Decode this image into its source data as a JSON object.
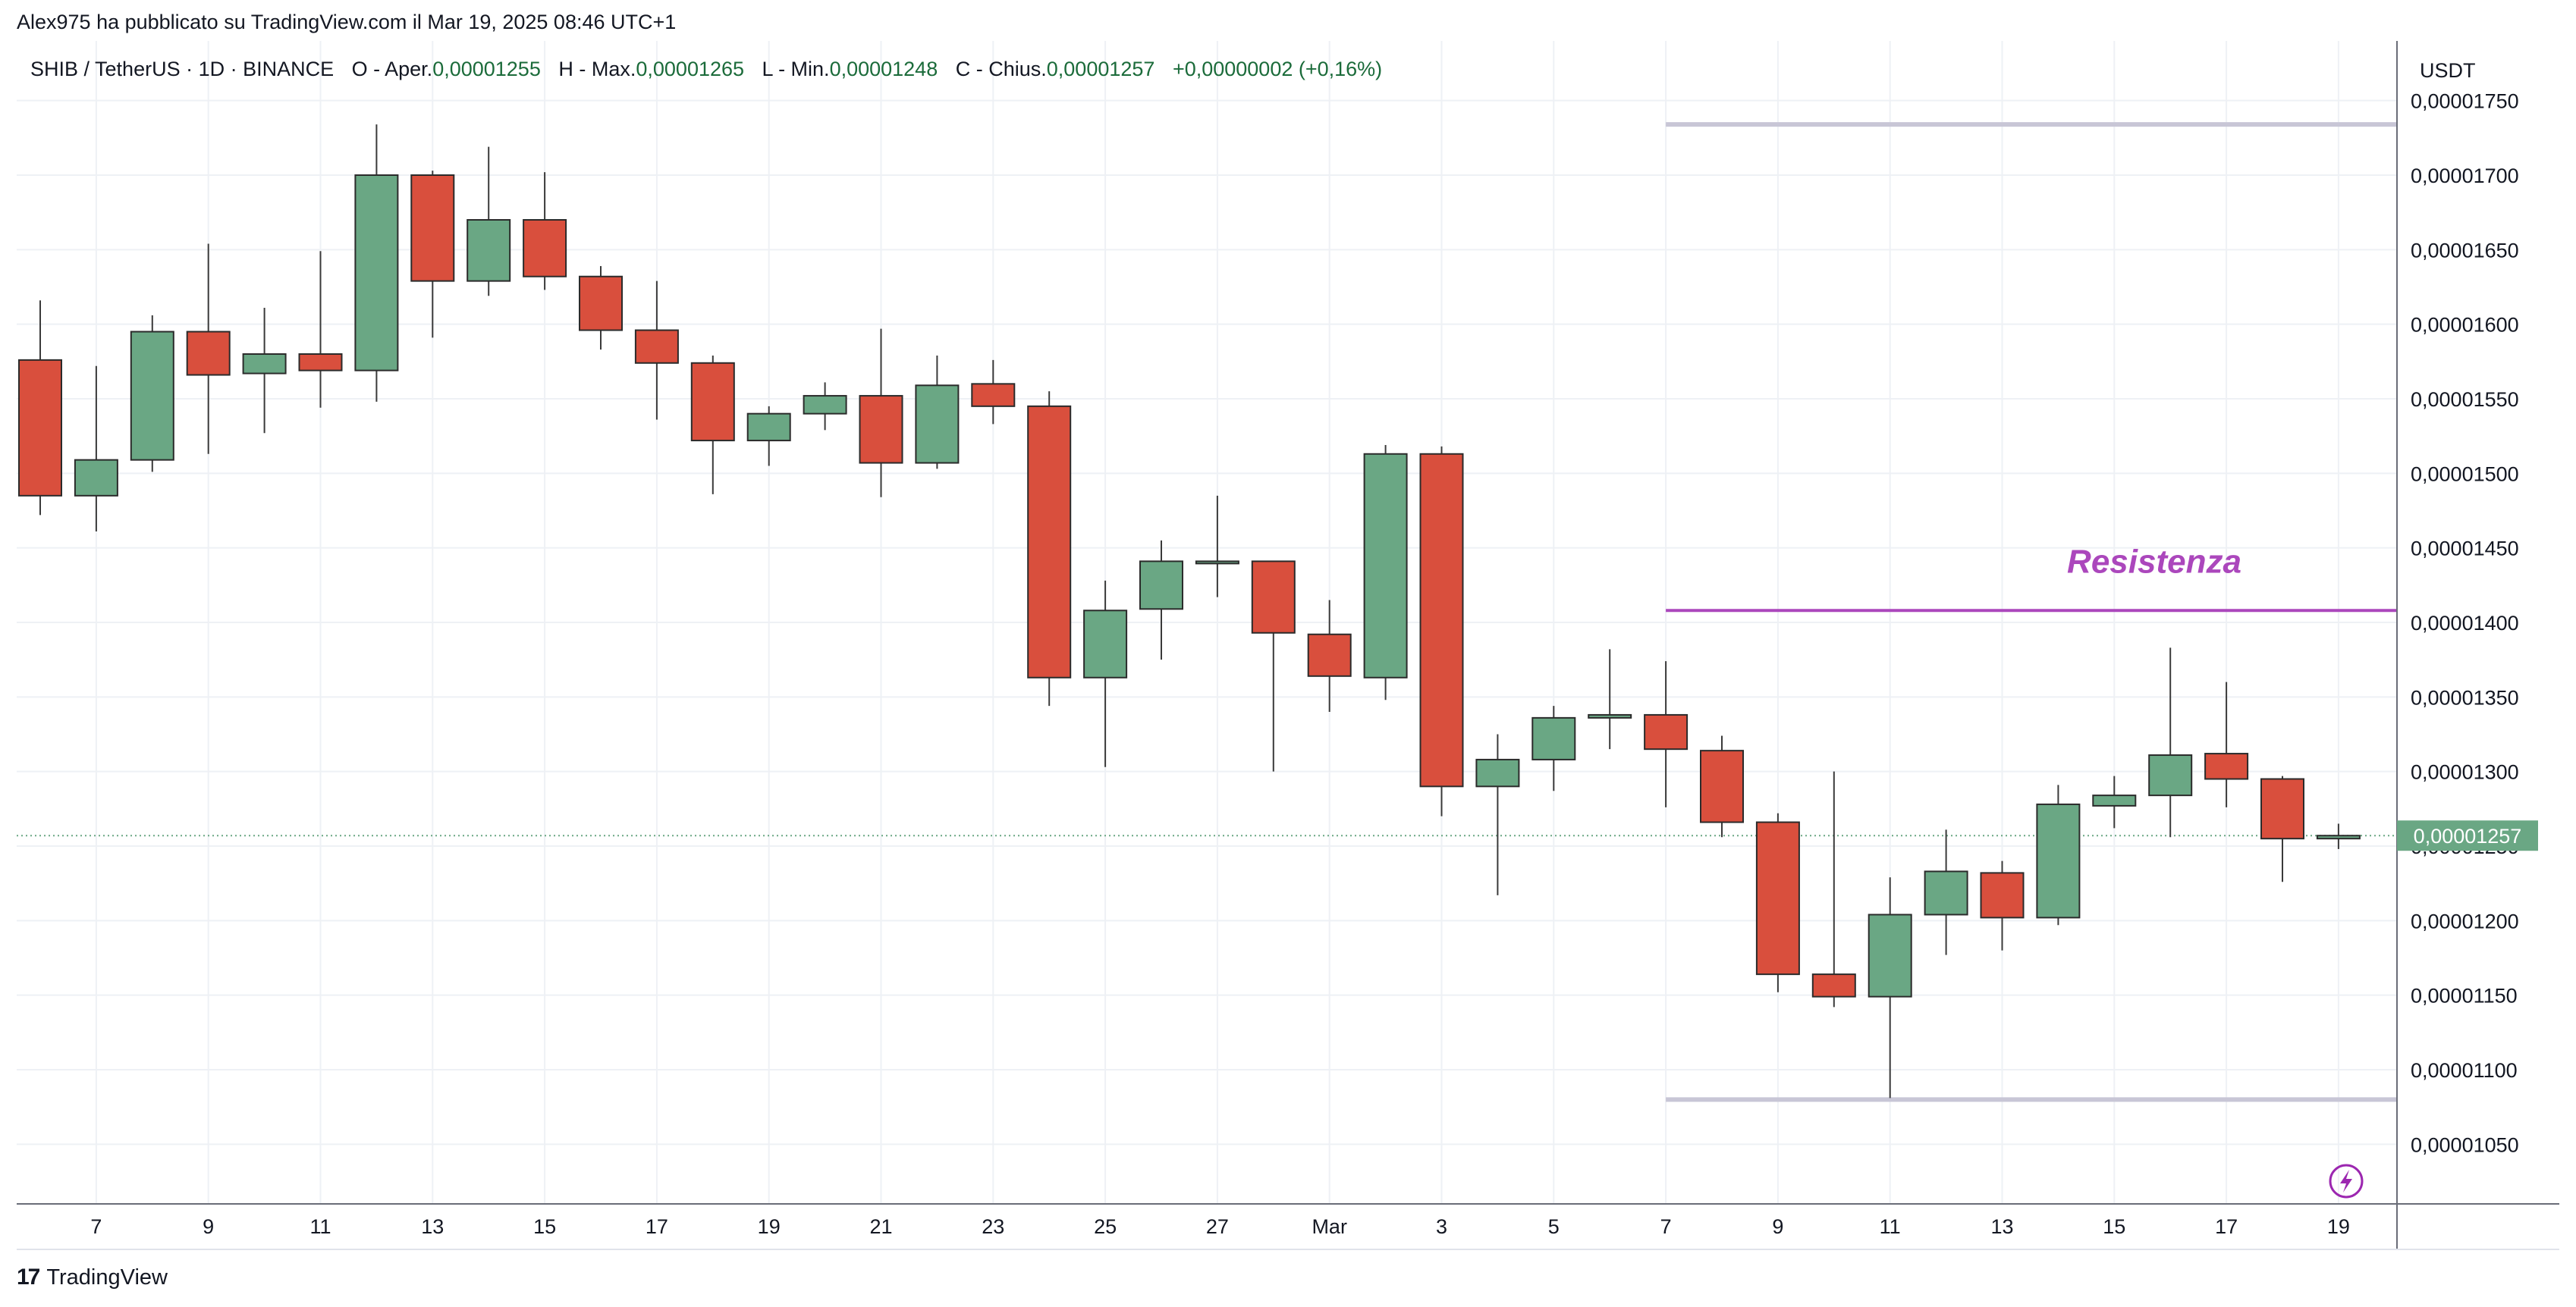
{
  "header": {
    "published": "Alex975 ha pubblicato su TradingView.com il Mar 19, 2025 08:46 UTC+1"
  },
  "legend": {
    "symbol": "SHIB / TetherUS · 1D · BINANCE",
    "open_label": "O - Aper.",
    "open_value": "0,00001255",
    "high_label": "H - Max.",
    "high_value": "0,00001265",
    "low_label": "L - Min.",
    "low_value": "0,00001248",
    "close_label": "C - Chius.",
    "close_value": "0,00001257",
    "change": "+0,00000002 (+0,16%)"
  },
  "axis": {
    "unit": "USDT"
  },
  "footer": {
    "brand": "TradingView",
    "logo_glyph": "17"
  },
  "colors": {
    "up": "#6aa784",
    "down": "#d94f3d",
    "resistance": "#ab47bc",
    "level": "#c8c6d6",
    "price_tag": "#6aa784"
  },
  "chart_data": {
    "type": "candlestick",
    "symbol": "SHIB / TetherUS",
    "interval": "1D",
    "exchange": "BINANCE",
    "y_unit": "USDT",
    "ylim": [
      1.01e-05,
      1.79e-05
    ],
    "y_ticks": [
      {
        "value": 1.75e-05,
        "label": "0,00001750"
      },
      {
        "value": 1.7e-05,
        "label": "0,00001700"
      },
      {
        "value": 1.65e-05,
        "label": "0,00001650"
      },
      {
        "value": 1.6e-05,
        "label": "0,00001600"
      },
      {
        "value": 1.55e-05,
        "label": "0,00001550"
      },
      {
        "value": 1.5e-05,
        "label": "0,00001500"
      },
      {
        "value": 1.45e-05,
        "label": "0,00001450"
      },
      {
        "value": 1.4e-05,
        "label": "0,00001400"
      },
      {
        "value": 1.35e-05,
        "label": "0,00001350"
      },
      {
        "value": 1.3e-05,
        "label": "0,00001300"
      },
      {
        "value": 1.25e-05,
        "label": "0,00001250"
      },
      {
        "value": 1.2e-05,
        "label": "0,00001200"
      },
      {
        "value": 1.15e-05,
        "label": "0,00001150"
      },
      {
        "value": 1.1e-05,
        "label": "0,00001100"
      },
      {
        "value": 1.05e-05,
        "label": "0,00001050"
      }
    ],
    "x_ticks": [
      {
        "index": 1,
        "label": "7"
      },
      {
        "index": 3,
        "label": "9"
      },
      {
        "index": 5,
        "label": "11"
      },
      {
        "index": 7,
        "label": "13"
      },
      {
        "index": 9,
        "label": "15"
      },
      {
        "index": 11,
        "label": "17"
      },
      {
        "index": 13,
        "label": "19"
      },
      {
        "index": 15,
        "label": "21"
      },
      {
        "index": 17,
        "label": "23"
      },
      {
        "index": 19,
        "label": "25"
      },
      {
        "index": 21,
        "label": "27"
      },
      {
        "index": 23,
        "label": "Mar"
      },
      {
        "index": 25,
        "label": "3"
      },
      {
        "index": 27,
        "label": "5"
      },
      {
        "index": 29,
        "label": "7"
      },
      {
        "index": 31,
        "label": "9"
      },
      {
        "index": 33,
        "label": "11"
      },
      {
        "index": 35,
        "label": "13"
      },
      {
        "index": 37,
        "label": "15"
      },
      {
        "index": 39,
        "label": "17"
      },
      {
        "index": 41,
        "label": "19"
      }
    ],
    "candles": [
      {
        "o": 1.576e-05,
        "h": 1.616e-05,
        "l": 1.472e-05,
        "c": 1.485e-05
      },
      {
        "o": 1.485e-05,
        "h": 1.572e-05,
        "l": 1.461e-05,
        "c": 1.509e-05
      },
      {
        "o": 1.509e-05,
        "h": 1.606e-05,
        "l": 1.501e-05,
        "c": 1.595e-05
      },
      {
        "o": 1.595e-05,
        "h": 1.654e-05,
        "l": 1.513e-05,
        "c": 1.566e-05
      },
      {
        "o": 1.567e-05,
        "h": 1.611e-05,
        "l": 1.527e-05,
        "c": 1.58e-05
      },
      {
        "o": 1.58e-05,
        "h": 1.649e-05,
        "l": 1.544e-05,
        "c": 1.569e-05
      },
      {
        "o": 1.569e-05,
        "h": 1.734e-05,
        "l": 1.548e-05,
        "c": 1.7e-05
      },
      {
        "o": 1.7e-05,
        "h": 1.703e-05,
        "l": 1.591e-05,
        "c": 1.629e-05
      },
      {
        "o": 1.629e-05,
        "h": 1.719e-05,
        "l": 1.619e-05,
        "c": 1.67e-05
      },
      {
        "o": 1.67e-05,
        "h": 1.702e-05,
        "l": 1.623e-05,
        "c": 1.632e-05
      },
      {
        "o": 1.632e-05,
        "h": 1.639e-05,
        "l": 1.583e-05,
        "c": 1.596e-05
      },
      {
        "o": 1.596e-05,
        "h": 1.629e-05,
        "l": 1.536e-05,
        "c": 1.574e-05
      },
      {
        "o": 1.574e-05,
        "h": 1.579e-05,
        "l": 1.486e-05,
        "c": 1.522e-05
      },
      {
        "o": 1.522e-05,
        "h": 1.545e-05,
        "l": 1.505e-05,
        "c": 1.54e-05
      },
      {
        "o": 1.54e-05,
        "h": 1.561e-05,
        "l": 1.529e-05,
        "c": 1.552e-05
      },
      {
        "o": 1.552e-05,
        "h": 1.597e-05,
        "l": 1.484e-05,
        "c": 1.507e-05
      },
      {
        "o": 1.507e-05,
        "h": 1.579e-05,
        "l": 1.503e-05,
        "c": 1.559e-05
      },
      {
        "o": 1.56e-05,
        "h": 1.576e-05,
        "l": 1.533e-05,
        "c": 1.545e-05
      },
      {
        "o": 1.545e-05,
        "h": 1.555e-05,
        "l": 1.344e-05,
        "c": 1.363e-05
      },
      {
        "o": 1.363e-05,
        "h": 1.428e-05,
        "l": 1.303e-05,
        "c": 1.408e-05
      },
      {
        "o": 1.409e-05,
        "h": 1.455e-05,
        "l": 1.375e-05,
        "c": 1.441e-05
      },
      {
        "o": 1.441e-05,
        "h": 1.485e-05,
        "l": 1.417e-05,
        "c": 1.441e-05
      },
      {
        "o": 1.441e-05,
        "h": 1.441e-05,
        "l": 1.3e-05,
        "c": 1.393e-05
      },
      {
        "o": 1.392e-05,
        "h": 1.415e-05,
        "l": 1.34e-05,
        "c": 1.364e-05
      },
      {
        "o": 1.363e-05,
        "h": 1.519e-05,
        "l": 1.348e-05,
        "c": 1.513e-05
      },
      {
        "o": 1.513e-05,
        "h": 1.518e-05,
        "l": 1.27e-05,
        "c": 1.29e-05
      },
      {
        "o": 1.29e-05,
        "h": 1.325e-05,
        "l": 1.217e-05,
        "c": 1.308e-05
      },
      {
        "o": 1.308e-05,
        "h": 1.344e-05,
        "l": 1.287e-05,
        "c": 1.336e-05
      },
      {
        "o": 1.336e-05,
        "h": 1.382e-05,
        "l": 1.315e-05,
        "c": 1.338e-05
      },
      {
        "o": 1.338e-05,
        "h": 1.374e-05,
        "l": 1.276e-05,
        "c": 1.315e-05
      },
      {
        "o": 1.314e-05,
        "h": 1.324e-05,
        "l": 1.256e-05,
        "c": 1.266e-05
      },
      {
        "o": 1.266e-05,
        "h": 1.272e-05,
        "l": 1.152e-05,
        "c": 1.164e-05
      },
      {
        "o": 1.164e-05,
        "h": 1.3e-05,
        "l": 1.142e-05,
        "c": 1.149e-05
      },
      {
        "o": 1.149e-05,
        "h": 1.229e-05,
        "l": 1.081e-05,
        "c": 1.204e-05
      },
      {
        "o": 1.204e-05,
        "h": 1.261e-05,
        "l": 1.177e-05,
        "c": 1.233e-05
      },
      {
        "o": 1.232e-05,
        "h": 1.24e-05,
        "l": 1.18e-05,
        "c": 1.202e-05
      },
      {
        "o": 1.202e-05,
        "h": 1.291e-05,
        "l": 1.197e-05,
        "c": 1.278e-05
      },
      {
        "o": 1.277e-05,
        "h": 1.297e-05,
        "l": 1.262e-05,
        "c": 1.284e-05
      },
      {
        "o": 1.284e-05,
        "h": 1.383e-05,
        "l": 1.256e-05,
        "c": 1.311e-05
      },
      {
        "o": 1.312e-05,
        "h": 1.36e-05,
        "l": 1.276e-05,
        "c": 1.295e-05
      },
      {
        "o": 1.295e-05,
        "h": 1.297e-05,
        "l": 1.226e-05,
        "c": 1.255e-05
      },
      {
        "o": 1.255e-05,
        "h": 1.265e-05,
        "l": 1.248e-05,
        "c": 1.257e-05
      }
    ],
    "annotations": [
      {
        "type": "hline",
        "value": 1.734e-05,
        "from_index": 29,
        "role": "level"
      },
      {
        "type": "hline",
        "value": 1.408e-05,
        "from_index": 29,
        "role": "resistance",
        "label": "Resistenza"
      },
      {
        "type": "hline",
        "value": 1.08e-05,
        "from_index": 29,
        "role": "level"
      }
    ],
    "last_price": {
      "value": 1.257e-05,
      "label": "0,00001257"
    }
  }
}
